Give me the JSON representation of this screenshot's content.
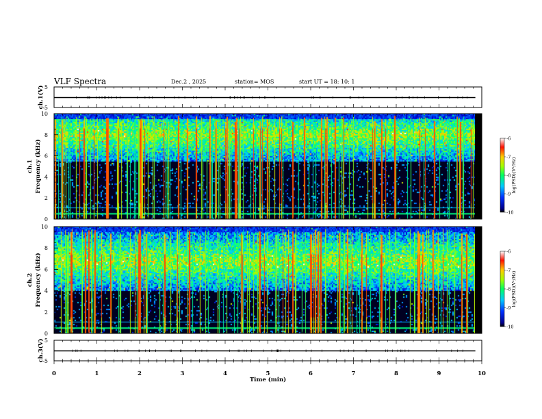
{
  "header": {
    "title": "VLF Spectra",
    "date": "Dec.2 , 2025",
    "station": "station= MOS",
    "start_ut": "start UT = 18: 10: 1"
  },
  "colors": {
    "background_plot": "#000000",
    "colormap": [
      "#000000",
      "#0000cc",
      "#0060ff",
      "#00d0ff",
      "#00ff80",
      "#a0ff00",
      "#ffd000",
      "#ff2000",
      "#ffffff"
    ]
  },
  "chart_data": [
    {
      "type": "line",
      "name": "ch1-waveform",
      "ylabel": "ch.1(V)",
      "yticks": [
        "5",
        "-5"
      ],
      "ylim": [
        -5,
        5
      ],
      "xlim": [
        0,
        10
      ],
      "trace_level": 0
    },
    {
      "type": "heatmap",
      "name": "ch1-spectrogram",
      "ylabel": "ch.1 Frequency (kHz)",
      "yticks": [
        "0",
        "2",
        "4",
        "6",
        "8",
        "10"
      ],
      "ylim": [
        0,
        10
      ],
      "xlim": [
        0,
        10
      ],
      "colorbar": {
        "label": "log(PSD)(V²/Hz)",
        "ticks": [
          "-6",
          "-7",
          "-8",
          "-9",
          "-10"
        ],
        "range": [
          -10,
          -6
        ]
      },
      "band_center_khz": 8.0,
      "band_lower_khz": 5.5,
      "low_line_khz": 0.5
    },
    {
      "type": "heatmap",
      "name": "ch2-spectrogram",
      "ylabel": "ch.2 Frequency (kHz)",
      "yticks": [
        "0",
        "2",
        "4",
        "6",
        "8",
        "10"
      ],
      "ylim": [
        0,
        10
      ],
      "xlim": [
        0,
        10
      ],
      "colorbar": {
        "label": "log(PSD)(V²/Hz)",
        "ticks": [
          "-6",
          "-7",
          "-8",
          "-9",
          "-10"
        ],
        "range": [
          -10,
          -6
        ]
      },
      "band_center_khz": 6.8,
      "band_lower_khz": 4.0,
      "low_line_khz": 0.5
    },
    {
      "type": "line",
      "name": "ch3-waveform",
      "ylabel": "ch.3(V)",
      "yticks": [
        "5",
        "-5"
      ],
      "ylim": [
        -5,
        5
      ],
      "xlim": [
        0,
        10
      ],
      "trace_level": 0
    }
  ],
  "xaxis": {
    "label": "Time (min)",
    "ticks": [
      "0",
      "1",
      "2",
      "3",
      "4",
      "5",
      "6",
      "7",
      "8",
      "9",
      "10"
    ],
    "data_end_min": 9.85
  }
}
